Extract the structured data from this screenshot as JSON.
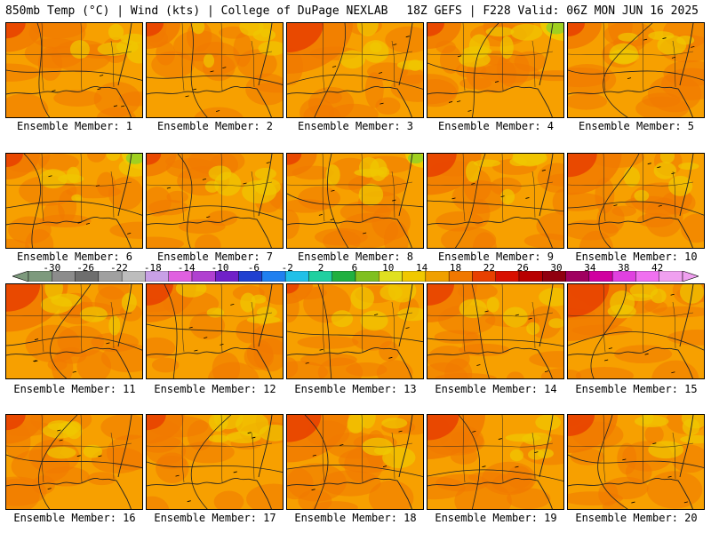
{
  "header": {
    "left": "850mb Temp (°C) | Wind (kts) | College of DuPage NEXLAB",
    "right": "18Z GEFS | F228 Valid: 06Z MON JUN 16 2025"
  },
  "caption_prefix": "Ensemble Member: ",
  "members": [
    {
      "id": 1,
      "label": "Ensemble Member: 1",
      "hot": 0.25,
      "cool": 0.0
    },
    {
      "id": 2,
      "label": "Ensemble Member: 2",
      "hot": 0.2,
      "cool": 0.0
    },
    {
      "id": 3,
      "label": "Ensemble Member: 3",
      "hot": 0.6,
      "cool": 0.0
    },
    {
      "id": 4,
      "label": "Ensemble Member: 4",
      "hot": 0.2,
      "cool": 0.3
    },
    {
      "id": 5,
      "label": "Ensemble Member: 5",
      "hot": 0.2,
      "cool": 0.0
    },
    {
      "id": 6,
      "label": "Ensemble Member: 6",
      "hot": 0.2,
      "cool": 0.25
    },
    {
      "id": 7,
      "label": "Ensemble Member: 7",
      "hot": 0.15,
      "cool": 0.0
    },
    {
      "id": 8,
      "label": "Ensemble Member: 8",
      "hot": 0.15,
      "cool": 0.2
    },
    {
      "id": 9,
      "label": "Ensemble Member: 9",
      "hot": 0.45,
      "cool": 0.0
    },
    {
      "id": 10,
      "label": "Ensemble Member: 10",
      "hot": 0.45,
      "cool": 0.0
    },
    {
      "id": 11,
      "label": "Ensemble Member: 11",
      "hot": 0.55,
      "cool": 0.0
    },
    {
      "id": 12,
      "label": "Ensemble Member: 12",
      "hot": 0.4,
      "cool": 0.0
    },
    {
      "id": 13,
      "label": "Ensemble Member: 13",
      "hot": 0.1,
      "cool": 0.0
    },
    {
      "id": 14,
      "label": "Ensemble Member: 14",
      "hot": 0.4,
      "cool": 0.0
    },
    {
      "id": 15,
      "label": "Ensemble Member: 15",
      "hot": 0.7,
      "cool": 0.0
    },
    {
      "id": 16,
      "label": "Ensemble Member: 16",
      "hot": 0.25,
      "cool": 0.0
    },
    {
      "id": 17,
      "label": "Ensemble Member: 17",
      "hot": 0.25,
      "cool": 0.0
    },
    {
      "id": 18,
      "label": "Ensemble Member: 18",
      "hot": 0.55,
      "cool": 0.0
    },
    {
      "id": 19,
      "label": "Ensemble Member: 19",
      "hot": 0.5,
      "cool": 0.0
    },
    {
      "id": 20,
      "label": "Ensemble Member: 20",
      "hot": 0.4,
      "cool": 0.0
    }
  ],
  "colorbar": {
    "labels": [
      "-30",
      "-26",
      "-22",
      "-18",
      "-14",
      "-10",
      "-6",
      "-2",
      "2",
      "6",
      "10",
      "14",
      "18",
      "22",
      "26",
      "30",
      "34",
      "38",
      "42"
    ],
    "colors": [
      "#7d9a7d",
      "#8c8c8c",
      "#6e6e6e",
      "#a0a0a0",
      "#bdbdbd",
      "#c8a0e6",
      "#e060e0",
      "#b040d0",
      "#7020c8",
      "#2040d0",
      "#2080f0",
      "#20c0e8",
      "#20d0a0",
      "#20b040",
      "#80c020",
      "#e0e020",
      "#f0c800",
      "#f0a000",
      "#f07800",
      "#e84000",
      "#d81000",
      "#b80000",
      "#900010",
      "#a00060",
      "#d000a0",
      "#e040e0",
      "#f070f0",
      "#f0a0f0"
    ],
    "unit": "°C"
  },
  "colors": {
    "base": "#f7a000",
    "warm": "#f07800",
    "hot": "#e84000",
    "cool": "#f0c800",
    "cooler": "#a0d020",
    "coast": "#222222"
  }
}
